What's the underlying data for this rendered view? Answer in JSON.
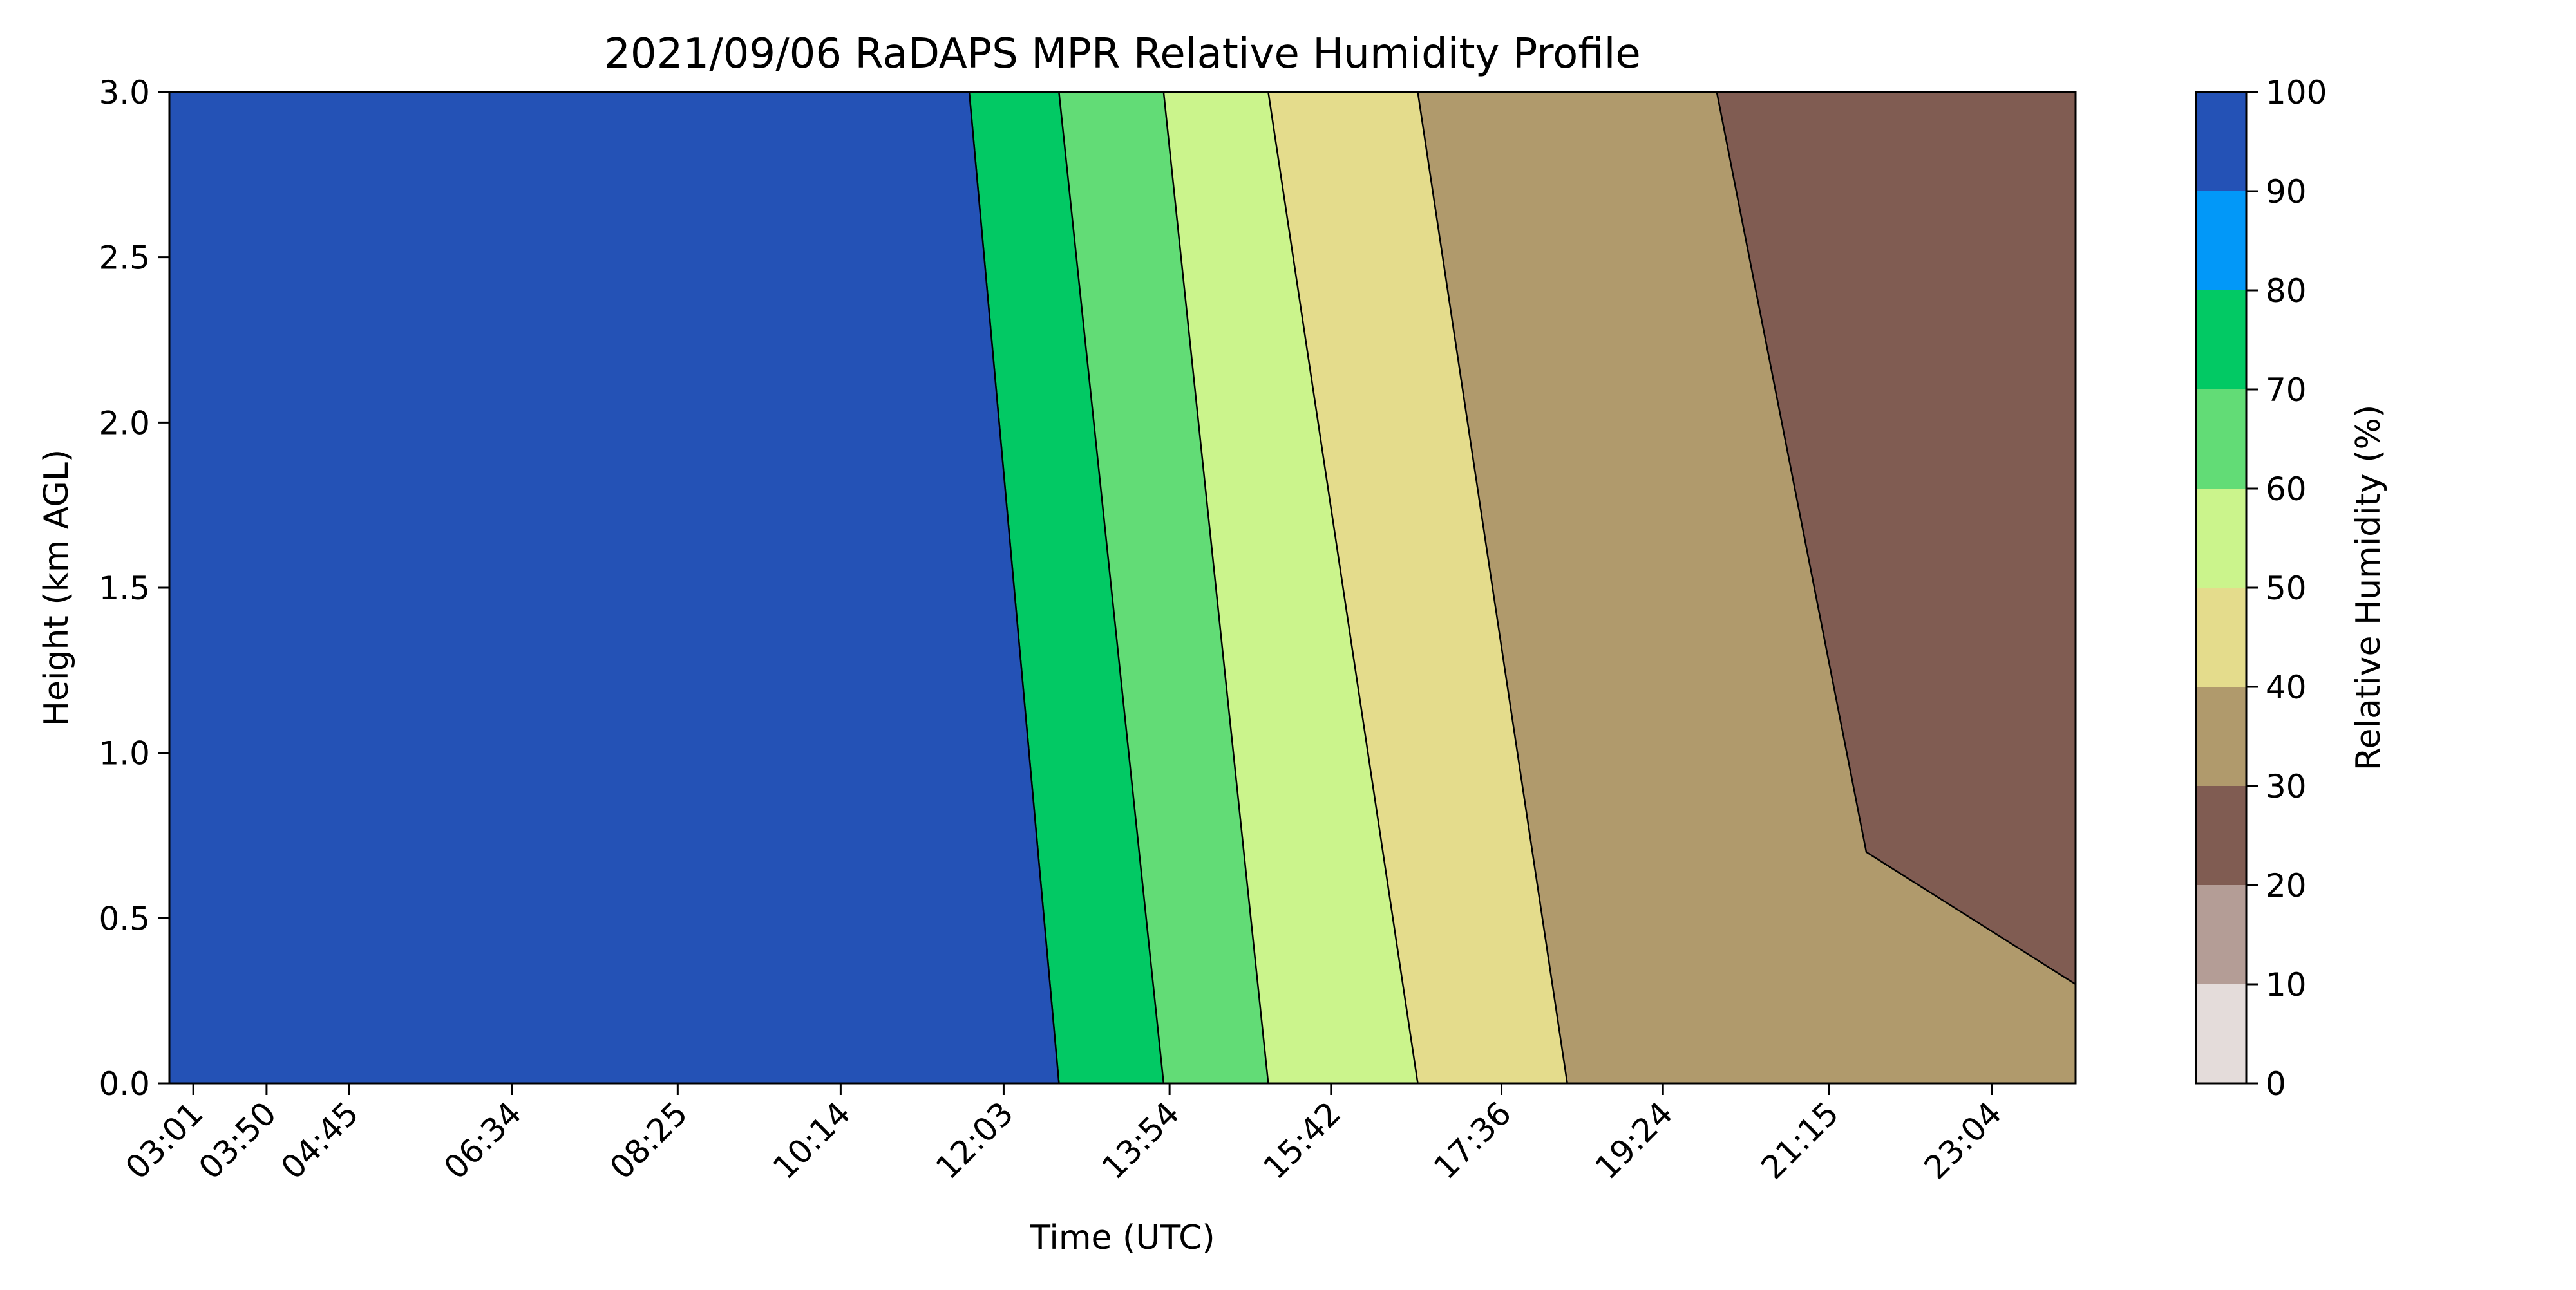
{
  "chart_data": {
    "type": "heatmap",
    "subtype": "filled-contour",
    "title": "2021/09/06 RaDAPS MPR Relative Humidity Profile",
    "xlabel": "Time (UTC)",
    "ylabel": "Height (km AGL)",
    "x_tick_labels": [
      "03:01",
      "03:50",
      "04:45",
      "06:34",
      "08:25",
      "10:14",
      "12:03",
      "13:54",
      "15:42",
      "17:36",
      "19:24",
      "21:15",
      "23:04"
    ],
    "x_tick_minutes": [
      181,
      230,
      285,
      394,
      505,
      614,
      723,
      834,
      942,
      1056,
      1164,
      1275,
      1384
    ],
    "xlim_minutes": [
      165,
      1440
    ],
    "ylim": [
      0,
      3.0
    ],
    "y_ticks": [
      0.0,
      0.5,
      1.0,
      1.5,
      2.0,
      2.5,
      3.0
    ],
    "y_tick_labels": [
      "0.0",
      "0.5",
      "1.0",
      "1.5",
      "2.0",
      "2.5",
      "3.0"
    ],
    "colorbar": {
      "label": "Relative Humidity (%)",
      "levels": [
        0,
        10,
        20,
        30,
        40,
        50,
        60,
        70,
        80,
        90,
        100
      ],
      "tick_labels": [
        "0",
        "10",
        "20",
        "30",
        "40",
        "50",
        "60",
        "70",
        "80",
        "90",
        "100"
      ],
      "colors": [
        "#e4dcda",
        "#b49d96",
        "#805c52",
        "#b09a6c",
        "#e4dc8c",
        "#cbf48c",
        "#62dc76",
        "#02c964",
        "#0298f8",
        "#2452b6"
      ]
    },
    "rh_band_top_heights_km": {
      "times_minutes": [
        165,
        700,
        760,
        830,
        900,
        1000,
        1100,
        1200,
        1300,
        1440
      ],
      "rh90_boundary": [
        3.0,
        3.0,
        0.0,
        0.0,
        0.0,
        0.0,
        0.0,
        0.0,
        0.0,
        0.0
      ],
      "rh80_boundary": [
        3.0,
        3.0,
        0.0,
        0.0,
        0.0,
        0.0,
        0.0,
        0.0,
        0.0,
        0.0
      ],
      "rh70_boundary": [
        3.0,
        3.0,
        3.0,
        0.0,
        0.0,
        0.0,
        0.0,
        0.0,
        0.0,
        0.0
      ],
      "rh60_boundary": [
        3.0,
        3.0,
        3.0,
        3.0,
        0.0,
        0.0,
        0.0,
        0.0,
        0.0,
        0.0
      ],
      "rh50_boundary": [
        3.0,
        3.0,
        3.0,
        3.0,
        3.0,
        0.0,
        0.0,
        0.0,
        0.0,
        0.0
      ],
      "rh40_boundary": [
        3.0,
        3.0,
        3.0,
        3.0,
        3.0,
        3.0,
        0.0,
        0.0,
        0.0,
        0.0
      ],
      "rh30_boundary": [
        3.0,
        3.0,
        3.0,
        3.0,
        3.0,
        3.0,
        3.0,
        3.0,
        0.7,
        0.3
      ],
      "rh20_boundary": [
        3.0,
        3.0,
        3.0,
        3.0,
        3.0,
        3.0,
        3.0,
        3.0,
        3.0,
        3.0
      ],
      "rh10_boundary": [
        3.0,
        3.0,
        3.0,
        3.0,
        3.0,
        3.0,
        3.0,
        3.0,
        3.0,
        3.0
      ]
    },
    "grid": false
  }
}
